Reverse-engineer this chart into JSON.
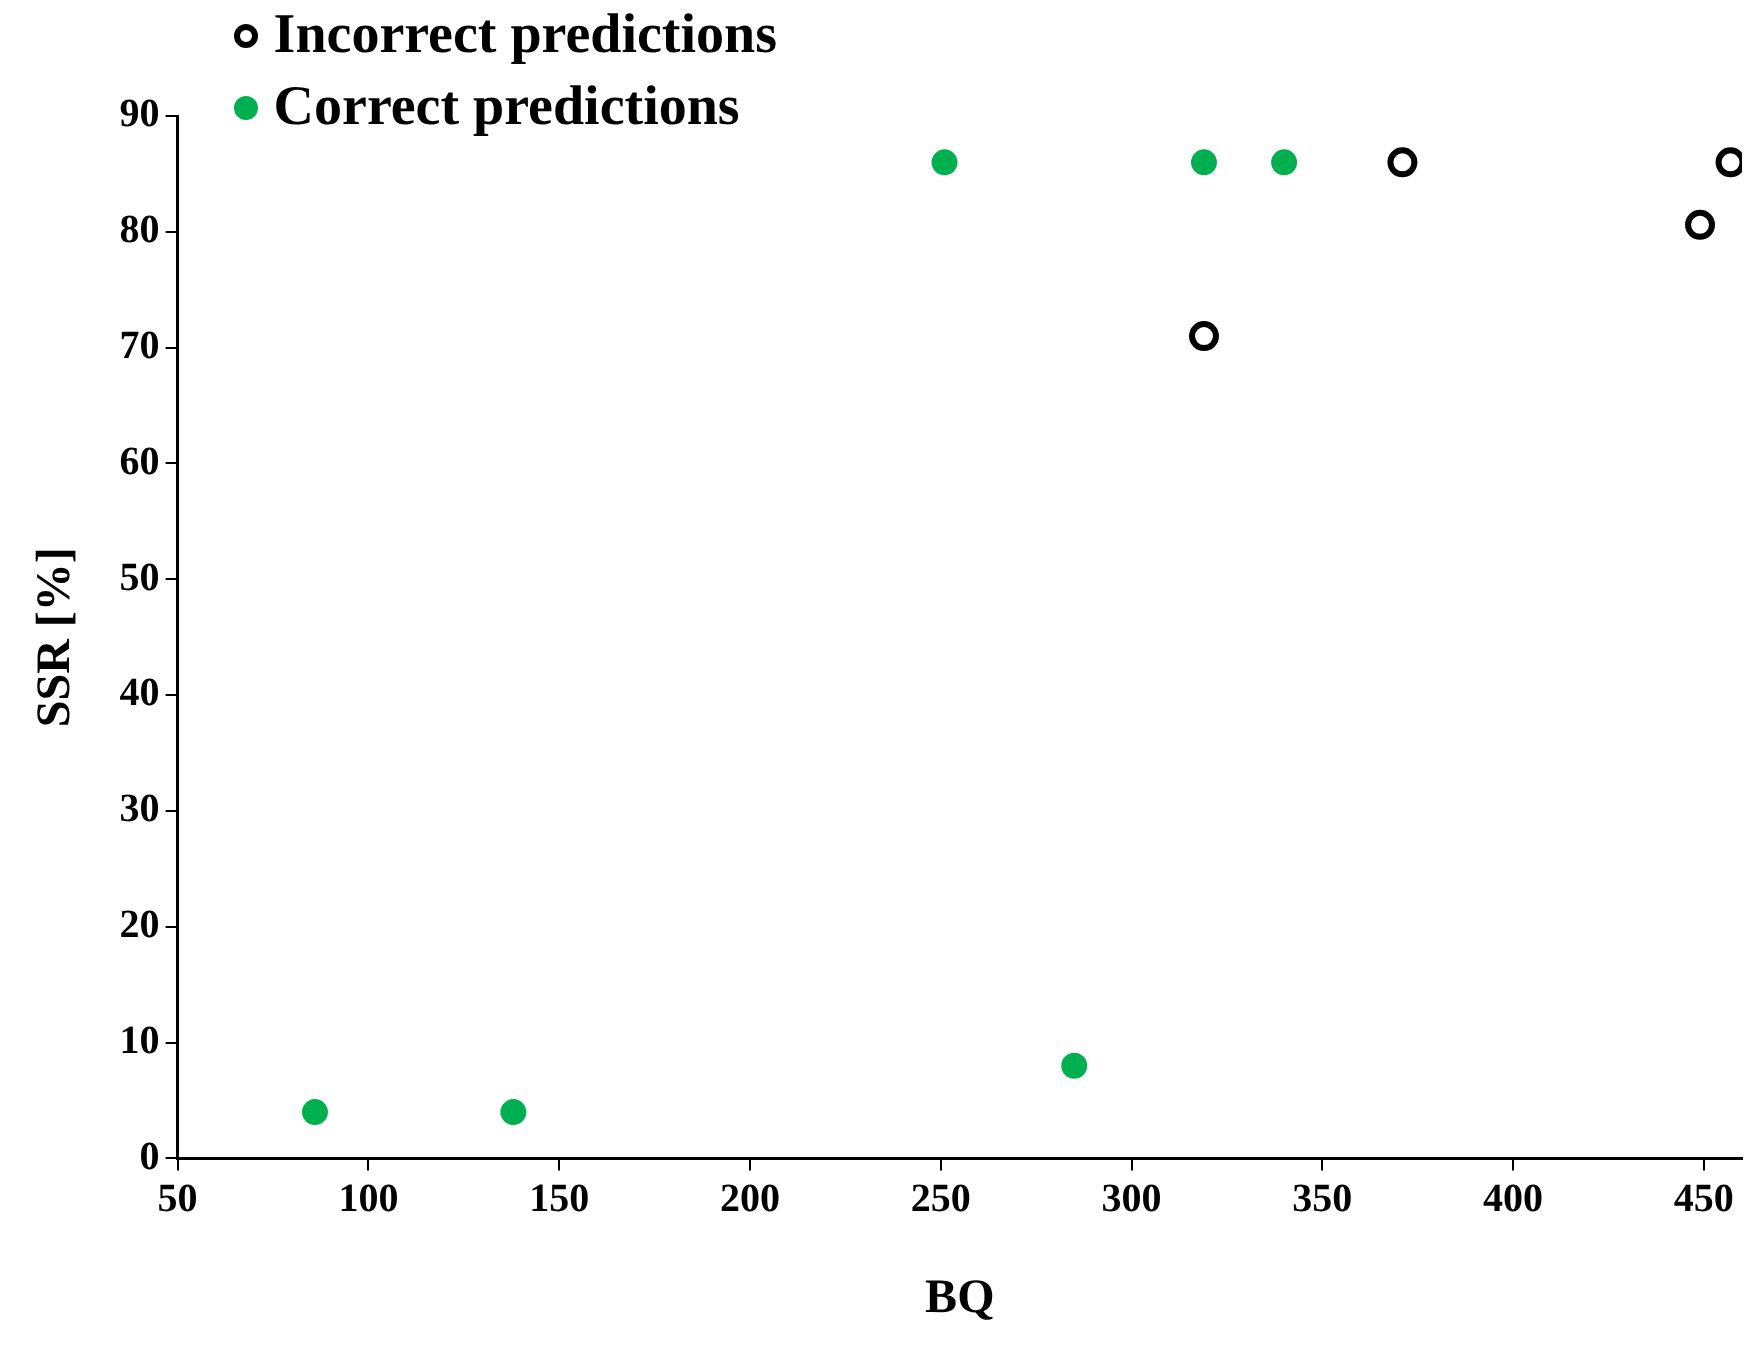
{
  "chart_data": {
    "type": "scatter",
    "xlabel": "BQ",
    "ylabel": "SSR [%]",
    "xlim": [
      50,
      460
    ],
    "xticks": [
      50,
      100,
      150,
      200,
      250,
      300,
      350,
      400,
      450
    ],
    "ylim": [
      0,
      90
    ],
    "yticks": [
      0,
      10,
      20,
      30,
      40,
      50,
      60,
      70,
      80,
      90
    ],
    "grid": false,
    "legend": "top left",
    "marker": "circle",
    "series": [
      {
        "name": "Incorrect predictions",
        "color": "#000000",
        "x": [
          319,
          371,
          449,
          457
        ],
        "values": [
          71,
          86,
          80.6,
          86
        ]
      },
      {
        "name": "Correct predictions",
        "color": "#00b050",
        "x": [
          86,
          138,
          251,
          285,
          319,
          340
        ],
        "values": [
          4,
          4,
          86,
          8,
          86,
          86
        ]
      }
    ]
  }
}
